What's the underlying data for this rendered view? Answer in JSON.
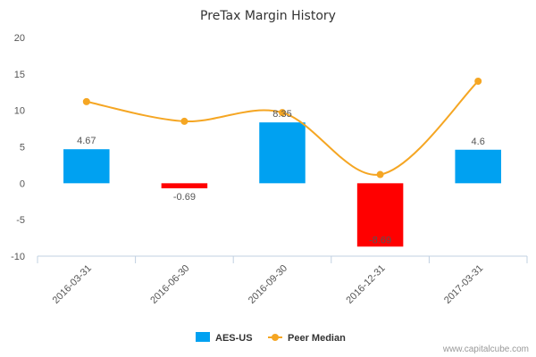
{
  "chart_data": {
    "type": "bar",
    "title": "PreTax Margin History",
    "categories": [
      "2016-03-31",
      "2016-06-30",
      "2016-09-30",
      "2016-12-31",
      "2017-03-31"
    ],
    "series": [
      {
        "name": "AES-US",
        "kind": "bar",
        "color": "#00a1f1",
        "negative_color": "#ff0000",
        "values": [
          4.67,
          -0.69,
          8.35,
          -8.69,
          4.6
        ],
        "labels": [
          "4.67",
          "-0.69",
          "8.35",
          "-8.69",
          "4.6"
        ]
      },
      {
        "name": "Peer Median",
        "kind": "line",
        "color": "#f5a623",
        "values": [
          11.2,
          8.5,
          9.7,
          1.2,
          14.0
        ]
      }
    ],
    "ylim": [
      -10,
      20
    ],
    "yticks": [
      -10,
      -5,
      0,
      5,
      10,
      15,
      20
    ],
    "grid": false,
    "legend": "bottom-center"
  },
  "credit": "www.capitalcube.com"
}
